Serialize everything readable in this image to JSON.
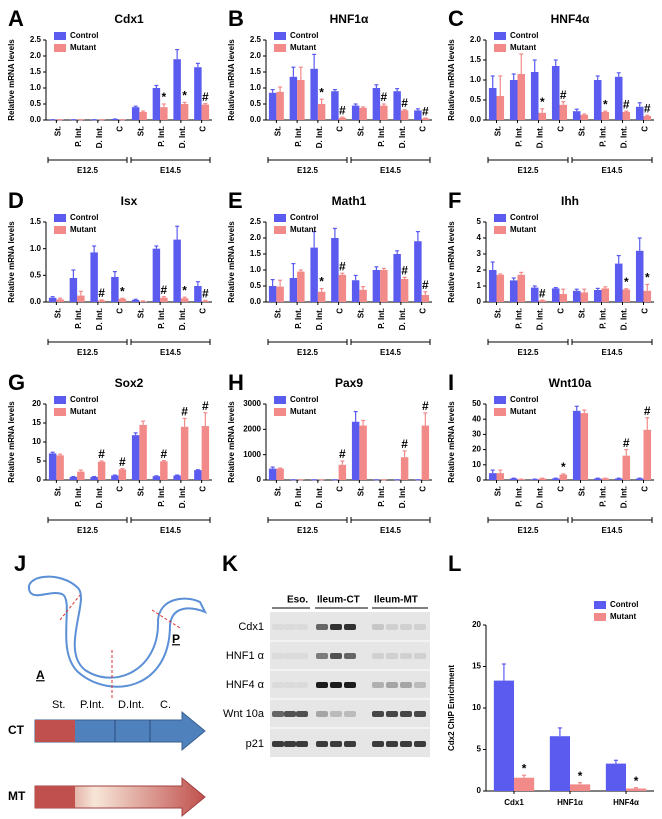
{
  "chart_data": [
    {
      "type": "bar",
      "panel": "A",
      "title": "Cdx1",
      "ylabel": "Relative mRNA levels",
      "categories": [
        "St.",
        "P. Int.",
        "D. Int.",
        "C",
        "St.",
        "P. Int.",
        "D. Int.",
        "C"
      ],
      "groups": [
        "E12.5",
        "E14.5"
      ],
      "ylim": [
        0,
        2.5
      ],
      "yticks": [
        {
          "value": 0,
          "label": "0.0"
        },
        0.5,
        {
          "value": 1,
          "label": "1.0"
        },
        1.5,
        {
          "value": 2,
          "label": "2.0"
        },
        2.5
      ],
      "legend": "upper left",
      "series": [
        {
          "name": "Control",
          "color": "#5b5bf0",
          "values": [
            0.01,
            0.01,
            0.01,
            0.03,
            0.4,
            1.0,
            1.9,
            1.65
          ],
          "errors": [
            0,
            0,
            0,
            0,
            0.03,
            0.08,
            0.3,
            0.12
          ],
          "markers": [
            null,
            null,
            null,
            null,
            null,
            null,
            null,
            null
          ]
        },
        {
          "name": "Mutant",
          "color": "#f28a8a",
          "values": [
            0.01,
            0.01,
            0.01,
            0.01,
            0.25,
            0.4,
            0.5,
            0.48
          ],
          "errors": [
            0,
            0,
            0,
            0,
            0.03,
            0.1,
            0.05,
            0.03
          ],
          "markers": [
            null,
            null,
            null,
            null,
            null,
            "*",
            "*",
            "#"
          ]
        }
      ]
    },
    {
      "type": "bar",
      "panel": "B",
      "title": "HNF1α",
      "ylabel": "Relative mRNA levels",
      "categories": [
        "St.",
        "P. Int.",
        "D. Int.",
        "C",
        "St.",
        "P. Int.",
        "D. Int.",
        "C"
      ],
      "groups": [
        "E12.5",
        "E14.5"
      ],
      "ylim": [
        0,
        2.5
      ],
      "yticks": [
        {
          "value": 0,
          "label": "0.0"
        },
        0.5,
        {
          "value": 1,
          "label": "1.0"
        },
        1.5,
        {
          "value": 2,
          "label": "2.0"
        },
        2.5
      ],
      "legend": "upper left",
      "series": [
        {
          "name": "Control",
          "color": "#5b5bf0",
          "values": [
            0.85,
            1.35,
            1.6,
            0.9,
            0.45,
            1.0,
            0.9,
            0.3
          ],
          "errors": [
            0.1,
            0.3,
            0.45,
            0.05,
            0.05,
            0.1,
            0.08,
            0.05
          ],
          "markers": [
            null,
            null,
            null,
            null,
            null,
            null,
            null,
            null
          ]
        },
        {
          "name": "Mutant",
          "color": "#f28a8a",
          "values": [
            0.88,
            1.25,
            0.5,
            0.07,
            0.38,
            0.45,
            0.3,
            0.05
          ],
          "errors": [
            0.15,
            0.4,
            0.15,
            0.02,
            0.03,
            0.05,
            0.02,
            0.01
          ],
          "markers": [
            null,
            null,
            "*",
            "#",
            null,
            "#",
            "#",
            "#"
          ]
        }
      ]
    },
    {
      "type": "bar",
      "panel": "C",
      "title": "HNF4α",
      "ylabel": "Relative mRNA levels",
      "categories": [
        "St.",
        "P. Int.",
        "D. Int.",
        "C",
        "St.",
        "P. Int.",
        "D. Int.",
        "C"
      ],
      "groups": [
        "E12.5",
        "E14.5"
      ],
      "ylim": [
        0,
        2
      ],
      "yticks": [
        {
          "value": 0,
          "label": "0.0"
        },
        0.5,
        {
          "value": 1,
          "label": "1.0"
        },
        1.5,
        {
          "value": 2,
          "label": "2.0"
        }
      ],
      "legend": "upper left",
      "series": [
        {
          "name": "Control",
          "color": "#5b5bf0",
          "values": [
            0.8,
            1.0,
            1.2,
            1.35,
            0.22,
            1.0,
            1.08,
            0.33
          ],
          "errors": [
            0.3,
            0.15,
            0.3,
            0.15,
            0.05,
            0.1,
            0.1,
            0.1
          ],
          "markers": [
            null,
            null,
            null,
            null,
            null,
            null,
            null,
            null
          ]
        },
        {
          "name": "Mutant",
          "color": "#f28a8a",
          "values": [
            0.6,
            1.15,
            0.18,
            0.38,
            0.13,
            0.2,
            0.2,
            0.1
          ],
          "errors": [
            0.5,
            0.5,
            0.1,
            0.08,
            0.02,
            0.02,
            0.02,
            0.02
          ],
          "markers": [
            null,
            null,
            "*",
            "#",
            null,
            "*",
            "#",
            "#"
          ]
        }
      ]
    },
    {
      "type": "bar",
      "panel": "D",
      "title": "Isx",
      "ylabel": "Relative mRNA levels",
      "categories": [
        "St.",
        "P. Int.",
        "D. Int.",
        "C",
        "St.",
        "P. Int.",
        "D. Int.",
        "C"
      ],
      "groups": [
        "E12.5",
        "E14.5"
      ],
      "ylim": [
        0,
        1.5
      ],
      "yticks": [
        {
          "value": 0,
          "label": "0.0"
        },
        0.5,
        {
          "value": 1,
          "label": "1.0"
        },
        1.5
      ],
      "legend": "upper left",
      "series": [
        {
          "name": "Control",
          "color": "#5b5bf0",
          "values": [
            0.08,
            0.45,
            0.93,
            0.47,
            0.04,
            1.0,
            1.17,
            0.3
          ],
          "errors": [
            0.02,
            0.15,
            0.12,
            0.1,
            0.01,
            0.05,
            0.25,
            0.08
          ],
          "markers": [
            null,
            null,
            null,
            null,
            null,
            null,
            null,
            null
          ]
        },
        {
          "name": "Mutant",
          "color": "#f28a8a",
          "values": [
            0.05,
            0.12,
            0.03,
            0.06,
            0.01,
            0.08,
            0.07,
            0.02
          ],
          "errors": [
            0.02,
            0.08,
            0.01,
            0.01,
            0.01,
            0.02,
            0.02,
            0.01
          ],
          "markers": [
            null,
            null,
            "#",
            "*",
            null,
            "#",
            "*",
            "#"
          ]
        }
      ]
    },
    {
      "type": "bar",
      "panel": "E",
      "title": "Math1",
      "ylabel": "Relative mRNA levels",
      "categories": [
        "St.",
        "P. Int.",
        "D. Int.",
        "C",
        "St.",
        "P. Int.",
        "D. Int.",
        "C"
      ],
      "groups": [
        "E12.5",
        "E14.5"
      ],
      "ylim": [
        0,
        2.5
      ],
      "yticks": [
        {
          "value": 0,
          "label": "0.0"
        },
        0.5,
        {
          "value": 1,
          "label": "1.0"
        },
        1.5,
        {
          "value": 2,
          "label": "2.0"
        },
        2.5
      ],
      "legend": "upper left",
      "series": [
        {
          "name": "Control",
          "color": "#5b5bf0",
          "values": [
            0.5,
            0.75,
            1.7,
            2.0,
            0.68,
            1.0,
            1.5,
            1.9
          ],
          "errors": [
            0.2,
            0.45,
            0.5,
            0.3,
            0.15,
            0.1,
            0.1,
            0.3
          ],
          "markers": [
            null,
            null,
            null,
            null,
            null,
            null,
            null,
            null
          ]
        },
        {
          "name": "Mutant",
          "color": "#f28a8a",
          "values": [
            0.48,
            0.95,
            0.32,
            0.85,
            0.38,
            1.0,
            0.72,
            0.22
          ],
          "errors": [
            0.2,
            0.05,
            0.1,
            0.05,
            0.1,
            0.05,
            0.05,
            0.1
          ],
          "markers": [
            null,
            null,
            "*",
            "#",
            null,
            null,
            "#",
            "#"
          ]
        }
      ]
    },
    {
      "type": "bar",
      "panel": "F",
      "title": "Ihh",
      "ylabel": "Relative mRNA levels",
      "categories": [
        "St.",
        "P. Int.",
        "D. Int.",
        "C",
        "St.",
        "P. Int.",
        "D. Int.",
        "C"
      ],
      "groups": [
        "E12.5",
        "E14.5"
      ],
      "ylim": [
        0,
        5
      ],
      "yticks": [
        0,
        1,
        2,
        3,
        4,
        5
      ],
      "legend": "upper left",
      "series": [
        {
          "name": "Control",
          "color": "#5b5bf0",
          "values": [
            2.0,
            1.35,
            0.9,
            0.85,
            0.7,
            0.75,
            2.4,
            3.2
          ],
          "errors": [
            0.5,
            0.15,
            0.1,
            0.05,
            0.1,
            0.1,
            0.5,
            0.8
          ],
          "markers": [
            null,
            null,
            null,
            null,
            null,
            null,
            null,
            null
          ]
        },
        {
          "name": "Mutant",
          "color": "#f28a8a",
          "values": [
            1.7,
            1.7,
            0.1,
            0.5,
            0.6,
            0.85,
            0.78,
            0.7
          ],
          "errors": [
            0.05,
            0.15,
            0.02,
            0.3,
            0.2,
            0.1,
            0.05,
            0.4
          ],
          "markers": [
            null,
            null,
            "#",
            null,
            null,
            null,
            "*",
            "*"
          ]
        }
      ]
    },
    {
      "type": "bar",
      "panel": "G",
      "title": "Sox2",
      "ylabel": "Relative mRNA levels",
      "categories": [
        "St.",
        "P. Int.",
        "D. Int.",
        "C",
        "St.",
        "P. Int.",
        "D. Int.",
        "C"
      ],
      "groups": [
        "E12.5",
        "E14.5"
      ],
      "ylim": [
        0,
        20
      ],
      "yticks": [
        0,
        5,
        10,
        15,
        20
      ],
      "legend": "upper left",
      "series": [
        {
          "name": "Control",
          "color": "#5b5bf0",
          "values": [
            7,
            0.8,
            0.8,
            1.2,
            11.8,
            1.0,
            1.2,
            2.6
          ],
          "errors": [
            0.3,
            0.1,
            0.1,
            0.1,
            0.6,
            0.1,
            0.1,
            0.1
          ],
          "markers": [
            null,
            null,
            null,
            null,
            null,
            null,
            null,
            null
          ]
        },
        {
          "name": "Mutant",
          "color": "#f28a8a",
          "values": [
            6.5,
            2.2,
            4.8,
            2.8,
            14.5,
            4.9,
            14,
            14.2
          ],
          "errors": [
            0.3,
            0.4,
            0.2,
            0.2,
            1,
            0.2,
            2.2,
            3.5
          ],
          "markers": [
            null,
            null,
            "#",
            "#",
            null,
            "#",
            "#",
            "#"
          ]
        }
      ]
    },
    {
      "type": "bar",
      "panel": "H",
      "title": "Pax9",
      "ylabel": "Relative mRNA levels",
      "categories": [
        "St.",
        "P. Int.",
        "D. Int.",
        "C",
        "St.",
        "P. Int.",
        "D. Int.",
        "C"
      ],
      "groups": [
        "E12.5",
        "E14.5"
      ],
      "ylim": [
        0,
        3000
      ],
      "yticks": [
        0,
        1000,
        2000,
        3000
      ],
      "legend": "upper left",
      "series": [
        {
          "name": "Control",
          "color": "#5b5bf0",
          "values": [
            450,
            10,
            10,
            10,
            2300,
            10,
            10,
            10
          ],
          "errors": [
            60,
            0,
            0,
            0,
            400,
            0,
            0,
            0
          ],
          "markers": [
            null,
            null,
            null,
            null,
            null,
            null,
            null,
            null
          ]
        },
        {
          "name": "Mutant",
          "color": "#f28a8a",
          "values": [
            450,
            10,
            10,
            600,
            2150,
            10,
            900,
            2150
          ],
          "errors": [
            20,
            0,
            0,
            150,
            200,
            0,
            250,
            500
          ],
          "markers": [
            null,
            null,
            null,
            "#",
            null,
            null,
            "#",
            "#"
          ]
        }
      ]
    },
    {
      "type": "bar",
      "panel": "I",
      "title": "Wnt10a",
      "ylabel": "Relative mRNA levels",
      "categories": [
        "St.",
        "P. Int.",
        "D. Int.",
        "C",
        "St.",
        "P. Int.",
        "D. Int.",
        "C"
      ],
      "groups": [
        "E12.5",
        "E14.5"
      ],
      "ylim": [
        0,
        50
      ],
      "yticks": [
        0,
        10,
        20,
        30,
        40,
        50
      ],
      "legend": "upper left",
      "series": [
        {
          "name": "Control",
          "color": "#5b5bf0",
          "values": [
            4.5,
            1,
            0.5,
            1,
            45.5,
            1,
            1,
            1
          ],
          "errors": [
            2,
            0.2,
            0.1,
            0.2,
            3,
            0.2,
            0.2,
            0.2
          ],
          "markers": [
            null,
            null,
            null,
            null,
            null,
            null,
            null,
            null
          ]
        },
        {
          "name": "Mutant",
          "color": "#f28a8a",
          "values": [
            4.5,
            0.5,
            1,
            3.5,
            44,
            1,
            16,
            33
          ],
          "errors": [
            2,
            0.1,
            0.2,
            0.5,
            2,
            0.2,
            4,
            8
          ],
          "markers": [
            null,
            null,
            null,
            "*",
            null,
            null,
            "#",
            "#"
          ]
        }
      ]
    },
    {
      "type": "bar",
      "panel": "L",
      "title": "",
      "ylabel": "Cdx2 ChIP Enrichment",
      "categories": [
        "Cdx1",
        "HNF1α",
        "HNF4α"
      ],
      "ylim": [
        0,
        20
      ],
      "yticks": [
        0,
        5,
        10,
        15,
        20
      ],
      "legend": "upper right",
      "series": [
        {
          "name": "Control",
          "color": "#5b5bf0",
          "values": [
            13.3,
            6.6,
            3.3
          ],
          "errors": [
            2,
            1,
            0.4
          ],
          "markers": [
            null,
            null,
            null
          ]
        },
        {
          "name": "Mutant",
          "color": "#f28a8a",
          "values": [
            1.6,
            0.8,
            0.3
          ],
          "errors": [
            0.3,
            0.2,
            0.1
          ],
          "markers": [
            "*",
            "*",
            "*"
          ]
        }
      ]
    }
  ],
  "diagram": {
    "letter": "J",
    "ends": [
      "A",
      "P"
    ],
    "segments": [
      "St.",
      "P.Int.",
      "D.Int.",
      "C."
    ],
    "rows": [
      "CT",
      "MT"
    ]
  },
  "blot": {
    "letter": "K",
    "lanes": [
      "Eso.",
      "Ileum-CT",
      "Ileum-MT"
    ],
    "bands": [
      "Cdx1",
      "HNF1 α",
      "HNF4 α",
      "Wnt 10a",
      "p21"
    ]
  }
}
